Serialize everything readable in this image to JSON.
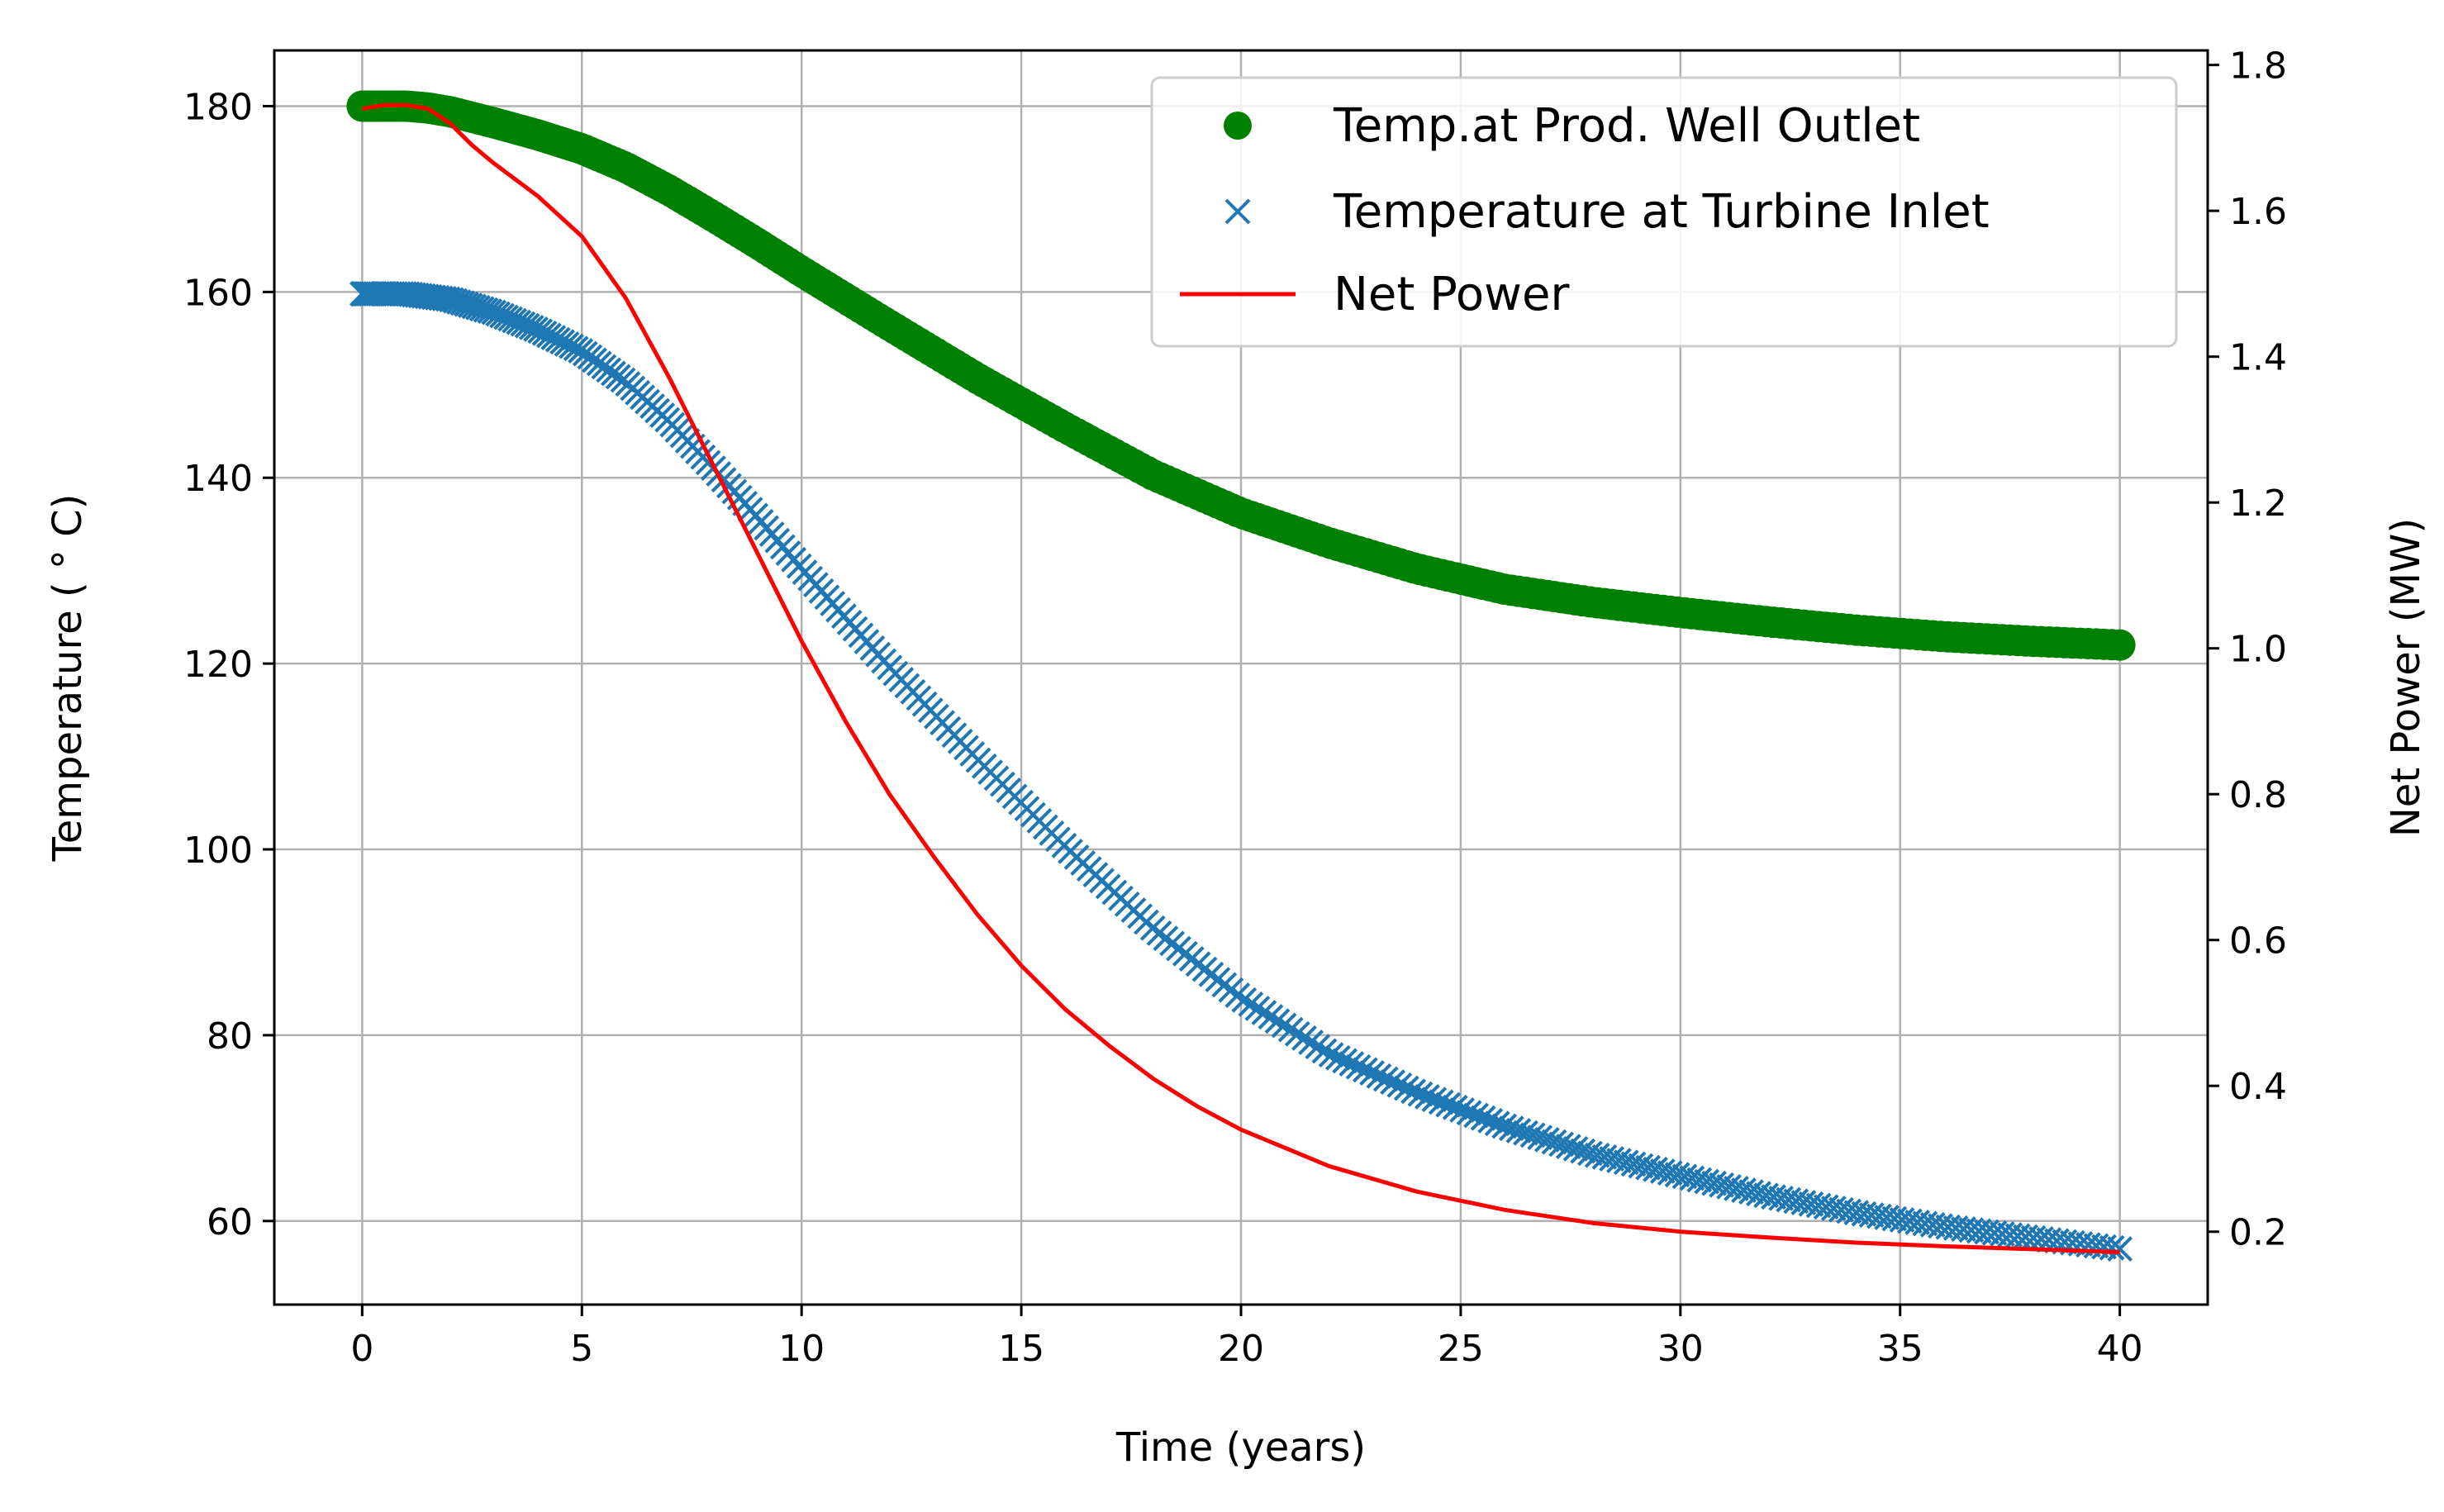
{
  "chart_data": {
    "type": "line",
    "xlabel": "Time (years)",
    "ylabel_left": "Temperature ( ° C)",
    "ylabel_right": "Net Power (MW)",
    "xlim": [
      -2,
      42
    ],
    "ylim_left": [
      51,
      186
    ],
    "ylim_right": [
      0.1,
      1.82
    ],
    "x_ticks": [
      0,
      5,
      10,
      15,
      20,
      25,
      30,
      35,
      40
    ],
    "y_ticks_left": [
      60,
      80,
      100,
      120,
      140,
      160,
      180
    ],
    "y_ticks_right": [
      0.2,
      0.4,
      0.6,
      0.8,
      1.0,
      1.2,
      1.4,
      1.6,
      1.8
    ],
    "grid": true,
    "legend_position": "top-right",
    "series": [
      {
        "name": "Temp.at Prod. Well Outlet",
        "axis": "left",
        "marker": "circle",
        "color": "#008000",
        "x": [
          0,
          0.5,
          1,
          1.5,
          2,
          3,
          4,
          5,
          6,
          7,
          8,
          9,
          10,
          12,
          14,
          16,
          18,
          20,
          22,
          24,
          26,
          28,
          30,
          32,
          34,
          36,
          38,
          40
        ],
        "y": [
          180,
          180,
          180,
          179.8,
          179.4,
          178.2,
          176.9,
          175.4,
          173.4,
          170.9,
          168.1,
          165.2,
          162.2,
          156.4,
          150.7,
          145.4,
          140.3,
          136.2,
          133.0,
          130.2,
          128.0,
          126.6,
          125.5,
          124.5,
          123.6,
          122.9,
          122.4,
          122.0
        ]
      },
      {
        "name": "Temperature at Turbine Inlet",
        "axis": "left",
        "marker": "x",
        "color": "#1f77b4",
        "x": [
          0,
          0.5,
          1,
          1.5,
          2,
          3,
          4,
          5,
          6,
          7,
          8,
          9,
          10,
          12,
          14,
          16,
          18,
          20,
          22,
          24,
          26,
          28,
          30,
          32,
          34,
          36,
          38,
          40
        ],
        "y": [
          159.8,
          159.8,
          159.8,
          159.5,
          159.2,
          157.8,
          155.9,
          153.6,
          150.3,
          146.0,
          141.0,
          135.7,
          130.2,
          119.6,
          109.7,
          100.3,
          91.5,
          84.0,
          78.0,
          73.8,
          70.2,
          67.2,
          64.9,
          62.7,
          60.9,
          59.4,
          58.2,
          57.0
        ]
      },
      {
        "name": "Net Power",
        "axis": "right",
        "marker": "line",
        "color": "#ff0000",
        "x": [
          0,
          0.5,
          1,
          1.5,
          2,
          2.5,
          3,
          4,
          5,
          6,
          7,
          8,
          9,
          10,
          11,
          12,
          13,
          14,
          15,
          16,
          17,
          18,
          19,
          20,
          22,
          24,
          26,
          28,
          30,
          32,
          34,
          36,
          38,
          40
        ],
        "y": [
          1.74,
          1.745,
          1.745,
          1.74,
          1.72,
          1.69,
          1.665,
          1.62,
          1.565,
          1.48,
          1.37,
          1.25,
          1.13,
          1.01,
          0.9,
          0.8,
          0.715,
          0.635,
          0.565,
          0.505,
          0.455,
          0.41,
          0.372,
          0.34,
          0.29,
          0.255,
          0.23,
          0.212,
          0.2,
          0.192,
          0.185,
          0.18,
          0.176,
          0.172
        ]
      }
    ]
  }
}
